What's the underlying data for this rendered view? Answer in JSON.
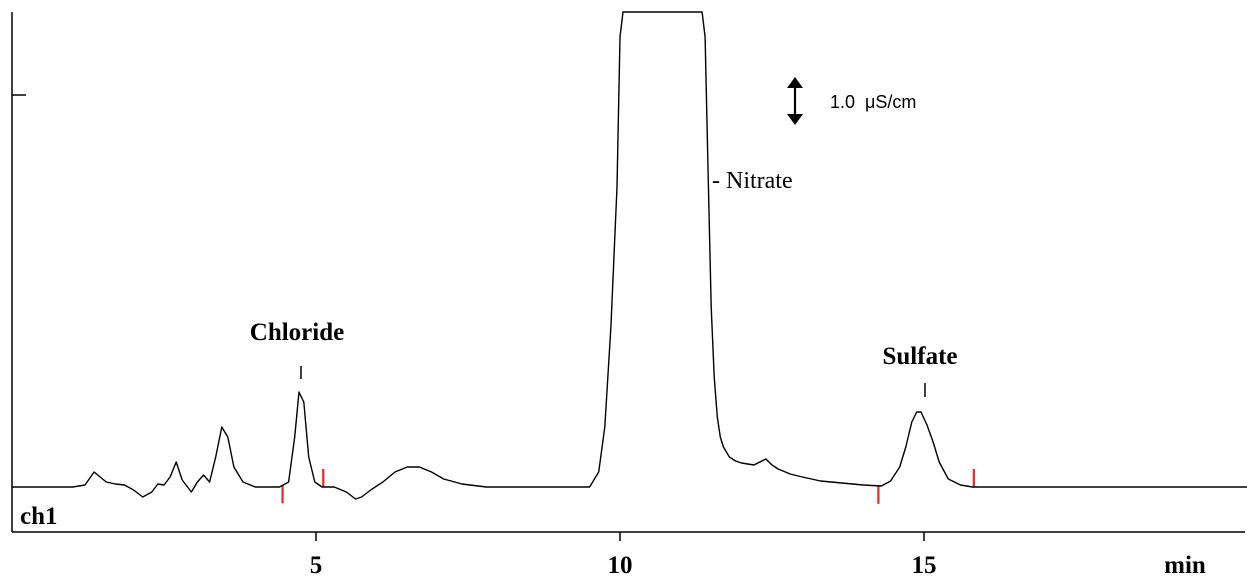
{
  "chart_data": {
    "type": "line",
    "channel_label": "ch1",
    "xlabel": "min",
    "xlim": [
      0,
      20.35
    ],
    "x_ticks": [
      5,
      10,
      15
    ],
    "x_tick_labels": [
      "5",
      "10",
      "15"
    ],
    "y_unit_note": "1.0  μS/cm",
    "grid": false,
    "series": [
      {
        "x": [
          0,
          1.0,
          1.2,
          1.35,
          1.45,
          1.55,
          1.7,
          1.85,
          2.0,
          2.15,
          2.3,
          2.4,
          2.5,
          2.6,
          2.7,
          2.8,
          2.95,
          3.05,
          3.15,
          3.25,
          3.35,
          3.45,
          3.55,
          3.65,
          3.8,
          4.0,
          4.4,
          4.55,
          4.65,
          4.72,
          4.8,
          4.88,
          4.98,
          5.1,
          5.3,
          5.5,
          5.65,
          5.75,
          5.9,
          6.1,
          6.3,
          6.5,
          6.7,
          6.9,
          7.1,
          7.4,
          7.8,
          8.6,
          9.5,
          9.65,
          9.75,
          9.85,
          9.95,
          10.0,
          10.05,
          11.35,
          11.4,
          11.45,
          11.5,
          11.55,
          11.6,
          11.65,
          11.7,
          11.8,
          11.9,
          12.0,
          12.2,
          12.4,
          12.5,
          12.6,
          12.8,
          13.0,
          13.3,
          14.0,
          14.3,
          14.45,
          14.6,
          14.7,
          14.8,
          14.88,
          14.95,
          15.05,
          15.15,
          15.25,
          15.4,
          15.6,
          15.8,
          16.2,
          17.5,
          20.35
        ],
        "y": [
          0,
          0,
          0.02,
          0.15,
          0.1,
          0.05,
          0.03,
          0.02,
          -0.03,
          -0.1,
          -0.05,
          0.03,
          0.02,
          0.1,
          0.25,
          0.07,
          -0.05,
          0.05,
          0.12,
          0.05,
          0.3,
          0.6,
          0.5,
          0.2,
          0.05,
          0,
          0,
          0.05,
          0.5,
          0.95,
          0.85,
          0.3,
          0.05,
          0,
          0,
          -0.05,
          -0.12,
          -0.1,
          -0.03,
          0.05,
          0.15,
          0.2,
          0.2,
          0.15,
          0.08,
          0.03,
          0,
          0,
          0,
          0.15,
          0.6,
          1.6,
          3.0,
          4.5,
          6.0,
          6.0,
          4.5,
          3.1,
          1.8,
          1.1,
          0.7,
          0.5,
          0.4,
          0.3,
          0.26,
          0.24,
          0.22,
          0.28,
          0.22,
          0.18,
          0.13,
          0.1,
          0.06,
          0.02,
          0.01,
          0.06,
          0.2,
          0.4,
          0.65,
          0.75,
          0.75,
          0.62,
          0.45,
          0.25,
          0.08,
          0.02,
          0,
          0,
          0,
          0
        ]
      }
    ],
    "peaks": [
      {
        "name": "Chloride",
        "x": 4.78
      },
      {
        "name": "- Nitrate",
        "x": 11.45
      },
      {
        "name": "Sulfate",
        "x": 14.98
      }
    ],
    "integration_marks": {
      "color": "#e8262c",
      "x": [
        4.45,
        5.12,
        14.25,
        15.82
      ]
    },
    "line_color": "#000000"
  }
}
